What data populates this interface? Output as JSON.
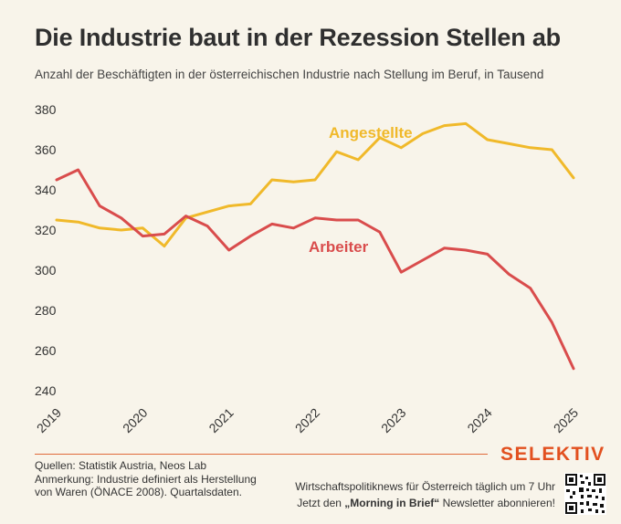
{
  "header": {
    "title": "Die Industrie baut in der Rezession Stellen ab",
    "subtitle": "Anzahl der Beschäftigten in der österreichischen Industrie nach Stellung im Beruf, in Tausend"
  },
  "chart_data": {
    "type": "line",
    "title": "Die Industrie baut in der Rezession Stellen ab",
    "subtitle": "Anzahl der Beschäftigten in der österreichischen Industrie nach Stellung im Beruf, in Tausend",
    "xlabel": "",
    "ylabel": "",
    "x": [
      2019.0,
      2019.25,
      2019.5,
      2019.75,
      2020.0,
      2020.25,
      2020.5,
      2020.75,
      2021.0,
      2021.25,
      2021.5,
      2021.75,
      2022.0,
      2022.25,
      2022.5,
      2022.75,
      2023.0,
      2023.25,
      2023.5,
      2023.75,
      2024.0,
      2024.25,
      2024.5,
      2024.75,
      2025.0
    ],
    "x_ticks": [
      "2019",
      "2020",
      "2021",
      "2022",
      "2023",
      "2024",
      "2025"
    ],
    "y_ticks": [
      240,
      260,
      280,
      300,
      320,
      340,
      360,
      380
    ],
    "ylim": [
      240,
      380
    ],
    "grid": false,
    "series": [
      {
        "name": "Angestellte",
        "color": "#f0b92a",
        "values": [
          325,
          324,
          321,
          320,
          321,
          312,
          326,
          329,
          332,
          333,
          345,
          344,
          345,
          359,
          355,
          366,
          361,
          368,
          372,
          373,
          365,
          363,
          361,
          360,
          346
        ]
      },
      {
        "name": "Arbeiter",
        "color": "#d94c4c",
        "values": [
          345,
          350,
          332,
          326,
          317,
          318,
          327,
          322,
          310,
          317,
          323,
          321,
          326,
          325,
          325,
          319,
          299,
          305,
          311,
          310,
          308,
          298,
          291,
          274,
          251
        ]
      }
    ]
  },
  "footer": {
    "sources": "Quellen: Statistik Austria, Neos Lab",
    "note_line1": "Anmerkung: Industrie definiert als Herstellung",
    "note_line2": "von Waren (ÖNACE 2008). Quartalsdaten.",
    "brand": "SELEKTIV",
    "promo_line1": "Wirtschaftspolitiknews für Österreich täglich um 7 Uhr",
    "promo_line2_prefix": "Jetzt den ",
    "promo_line2_bold": "„Morning in Brief“",
    "promo_line2_suffix": " Newsletter abonnieren!",
    "brand_color": "#e2501f"
  }
}
